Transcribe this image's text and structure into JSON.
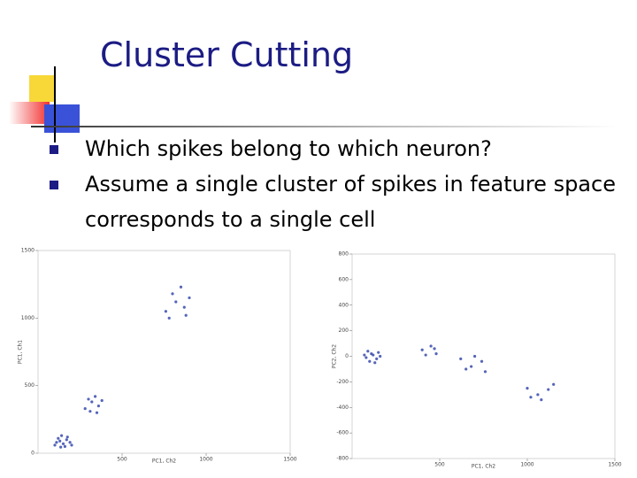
{
  "slide": {
    "title": "Cluster Cutting",
    "bullets": [
      "Which spikes belong to which neuron?",
      "Assume a single cluster of spikes in feature space corresponds to a single cell"
    ]
  },
  "chart_data": [
    {
      "type": "scatter",
      "xlabel": "PC1, Ch2",
      "ylabel": "PC1, Ch1",
      "color": "#2b3fa8",
      "xlim": [
        0,
        1500
      ],
      "ylim": [
        0,
        1500
      ],
      "xticks": [
        500,
        1000,
        1500
      ],
      "yticks": [
        0,
        500,
        1000,
        1500
      ],
      "x": [
        100,
        130,
        150,
        170,
        120,
        160,
        190,
        140,
        110,
        200,
        175,
        135,
        280,
        320,
        360,
        340,
        300,
        380,
        310,
        350,
        760,
        820,
        870,
        800,
        900,
        780,
        850,
        880
      ],
      "y": [
        60,
        90,
        70,
        100,
        110,
        50,
        80,
        130,
        80,
        60,
        120,
        45,
        330,
        380,
        350,
        420,
        400,
        390,
        310,
        300,
        1050,
        1120,
        1080,
        1180,
        1150,
        1000,
        1230,
        1020
      ]
    },
    {
      "type": "scatter",
      "xlabel": "PC1, Ch2",
      "ylabel": "PC2, Ch2",
      "color": "#2b3fa8",
      "xlim": [
        0,
        1500
      ],
      "ylim": [
        -800,
        800
      ],
      "xticks": [
        500,
        1000,
        1500
      ],
      "yticks": [
        -800,
        -600,
        -400,
        -200,
        0,
        200,
        400,
        600,
        800
      ],
      "x": [
        80,
        110,
        140,
        120,
        100,
        150,
        90,
        130,
        160,
        70,
        400,
        450,
        480,
        420,
        470,
        620,
        680,
        740,
        700,
        760,
        650,
        1000,
        1060,
        1120,
        1080,
        1150,
        1020
      ],
      "y": [
        -10,
        20,
        -20,
        10,
        -40,
        30,
        40,
        -50,
        0,
        10,
        50,
        80,
        20,
        10,
        60,
        -20,
        -80,
        -40,
        0,
        -120,
        -100,
        -250,
        -300,
        -260,
        -340,
        -220,
        -320
      ]
    }
  ]
}
